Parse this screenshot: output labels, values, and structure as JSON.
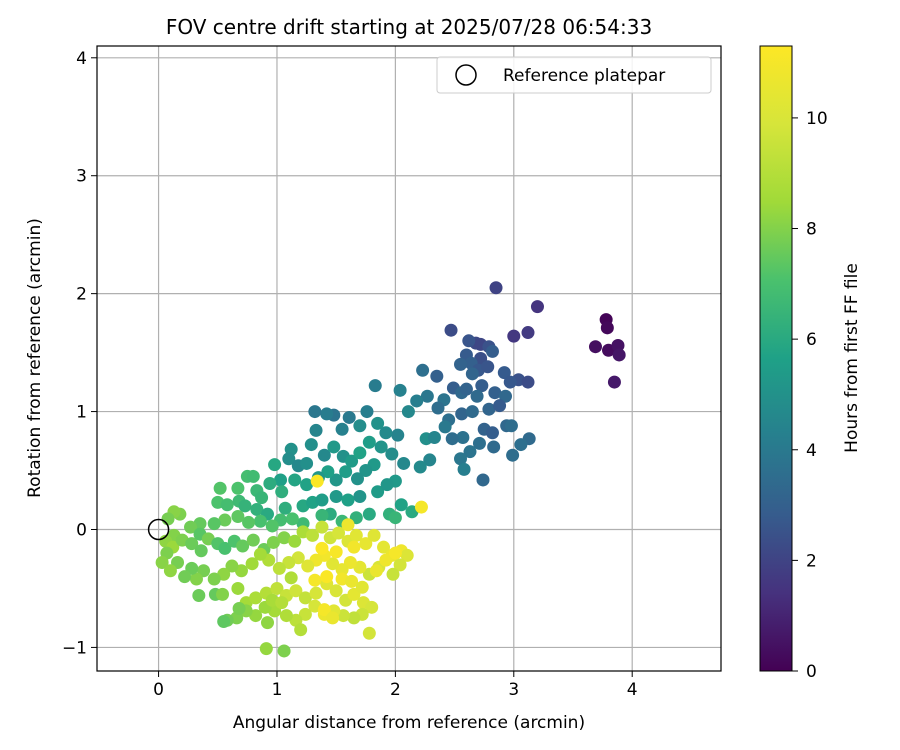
{
  "chart_data": {
    "type": "scatter",
    "title": "FOV centre drift starting at 2025/07/28 06:54:33",
    "xlabel": "Angular distance from reference (arcmin)",
    "ylabel": "Rotation from reference (arcmin)",
    "xlim": [
      -0.52,
      4.75
    ],
    "ylim": [
      -1.2,
      4.1
    ],
    "xticks": [
      0,
      1,
      2,
      3,
      4
    ],
    "yticks": [
      -1,
      0,
      1,
      2,
      3,
      4
    ],
    "grid": true,
    "legend": {
      "position": "top-right",
      "entries": [
        "Reference platepar"
      ]
    },
    "reference_point": {
      "name": "Reference platepar",
      "x": 0,
      "y": 0
    },
    "colorbar": {
      "label": "Hours from first FF file",
      "colormap": "viridis",
      "range": [
        0,
        11.3
      ],
      "ticks": [
        0,
        2,
        4,
        6,
        8,
        10
      ]
    },
    "points": [
      [
        3.78,
        1.78,
        0.1
      ],
      [
        3.79,
        1.71,
        0.2
      ],
      [
        3.69,
        1.55,
        0.4
      ],
      [
        3.8,
        1.52,
        0.3
      ],
      [
        3.88,
        1.56,
        0.5
      ],
      [
        3.89,
        1.48,
        0.6
      ],
      [
        3.85,
        1.25,
        0.7
      ],
      [
        2.85,
        2.05,
        2.0
      ],
      [
        3.2,
        1.89,
        1.5
      ],
      [
        2.47,
        1.69,
        2.3
      ],
      [
        2.68,
        1.58,
        2.2
      ],
      [
        2.72,
        1.57,
        2.1
      ],
      [
        2.79,
        1.55,
        2.5
      ],
      [
        3.12,
        1.67,
        1.7
      ],
      [
        3.0,
        1.64,
        1.6
      ],
      [
        2.62,
        1.6,
        2.6
      ],
      [
        2.6,
        1.48,
        2.8
      ],
      [
        2.72,
        1.45,
        2.4
      ],
      [
        2.82,
        1.51,
        2.9
      ],
      [
        2.64,
        1.41,
        3.0
      ],
      [
        2.55,
        1.4,
        3.1
      ],
      [
        2.7,
        1.35,
        2.7
      ],
      [
        2.78,
        1.38,
        2.6
      ],
      [
        2.65,
        1.32,
        3.2
      ],
      [
        2.92,
        1.33,
        2.8
      ],
      [
        3.04,
        1.27,
        2.5
      ],
      [
        3.12,
        1.25,
        2.3
      ],
      [
        2.97,
        1.25,
        2.7
      ],
      [
        2.35,
        1.3,
        3.0
      ],
      [
        2.23,
        1.35,
        3.6
      ],
      [
        2.49,
        1.2,
        2.9
      ],
      [
        2.56,
        1.16,
        3.3
      ],
      [
        2.6,
        1.19,
        3.1
      ],
      [
        2.73,
        1.22,
        2.9
      ],
      [
        2.69,
        1.13,
        3.4
      ],
      [
        2.84,
        1.16,
        3.0
      ],
      [
        2.93,
        1.13,
        3.3
      ],
      [
        2.41,
        1.1,
        3.8
      ],
      [
        2.27,
        1.13,
        3.9
      ],
      [
        2.36,
        1.03,
        3.5
      ],
      [
        2.18,
        1.09,
        4.2
      ],
      [
        1.83,
        1.22,
        4.1
      ],
      [
        2.04,
        1.18,
        4.3
      ],
      [
        2.11,
        1.0,
        4.6
      ],
      [
        2.45,
        0.93,
        3.6
      ],
      [
        2.56,
        0.98,
        3.2
      ],
      [
        2.65,
        1.0,
        3.4
      ],
      [
        2.79,
        1.02,
        3.2
      ],
      [
        2.88,
        1.05,
        2.8
      ],
      [
        2.75,
        0.85,
        3.1
      ],
      [
        2.82,
        0.82,
        2.9
      ],
      [
        2.94,
        0.88,
        3.3
      ],
      [
        2.98,
        0.88,
        3.5
      ],
      [
        3.13,
        0.77,
        3.4
      ],
      [
        3.06,
        0.72,
        3.6
      ],
      [
        2.57,
        0.78,
        3.7
      ],
      [
        2.48,
        0.77,
        3.5
      ],
      [
        2.42,
        0.87,
        4.0
      ],
      [
        2.26,
        0.77,
        4.9
      ],
      [
        2.33,
        0.78,
        4.5
      ],
      [
        2.71,
        0.73,
        3.6
      ],
      [
        2.83,
        0.7,
        3.4
      ],
      [
        2.99,
        0.63,
        3.5
      ],
      [
        2.63,
        0.66,
        3.8
      ],
      [
        2.55,
        0.6,
        3.9
      ],
      [
        2.74,
        0.42,
        3.3
      ],
      [
        2.58,
        0.51,
        4.2
      ],
      [
        2.29,
        0.59,
        4.5
      ],
      [
        2.21,
        0.53,
        4.7
      ],
      [
        2.07,
        0.56,
        4.6
      ],
      [
        2.0,
        0.41,
        5.3
      ],
      [
        1.97,
        0.64,
        4.8
      ],
      [
        2.02,
        0.8,
        4.4
      ],
      [
        1.92,
        0.82,
        4.7
      ],
      [
        1.85,
        0.9,
        5.0
      ],
      [
        1.7,
        0.88,
        4.8
      ],
      [
        1.76,
        1.0,
        4.2
      ],
      [
        1.61,
        0.95,
        4.0
      ],
      [
        1.48,
        0.97,
        3.8
      ],
      [
        1.55,
        0.85,
        4.3
      ],
      [
        1.42,
        0.98,
        4.1
      ],
      [
        1.32,
        1.0,
        3.9
      ],
      [
        1.33,
        0.84,
        4.5
      ],
      [
        1.29,
        0.72,
        4.9
      ],
      [
        1.12,
        0.68,
        5.0
      ],
      [
        1.1,
        0.6,
        4.8
      ],
      [
        1.18,
        0.54,
        4.6
      ],
      [
        1.25,
        0.56,
        4.9
      ],
      [
        1.4,
        0.63,
        4.6
      ],
      [
        1.48,
        0.7,
        5.3
      ],
      [
        1.56,
        0.62,
        5.0
      ],
      [
        1.63,
        0.58,
        5.4
      ],
      [
        1.7,
        0.65,
        5.7
      ],
      [
        1.78,
        0.74,
        5.5
      ],
      [
        1.88,
        0.7,
        5.1
      ],
      [
        1.82,
        0.55,
        5.3
      ],
      [
        1.75,
        0.5,
        5.1
      ],
      [
        1.68,
        0.43,
        5.0
      ],
      [
        1.58,
        0.49,
        5.5
      ],
      [
        1.5,
        0.42,
        5.2
      ],
      [
        1.43,
        0.49,
        5.6
      ],
      [
        1.35,
        0.44,
        5.2
      ],
      [
        1.25,
        0.38,
        5.7
      ],
      [
        1.15,
        0.42,
        5.8
      ],
      [
        1.03,
        0.42,
        5.6
      ],
      [
        0.98,
        0.55,
        5.9
      ],
      [
        0.94,
        0.39,
        6.1
      ],
      [
        1.04,
        0.32,
        6.2
      ],
      [
        0.83,
        0.33,
        6.6
      ],
      [
        0.87,
        0.27,
        6.5
      ],
      [
        0.75,
        0.45,
        6.9
      ],
      [
        0.8,
        0.45,
        6.8
      ],
      [
        0.67,
        0.35,
        7.1
      ],
      [
        0.52,
        0.35,
        7.2
      ],
      [
        0.5,
        0.23,
        7.1
      ],
      [
        0.58,
        0.21,
        6.9
      ],
      [
        0.68,
        0.24,
        6.7
      ],
      [
        0.73,
        0.2,
        6.4
      ],
      [
        0.83,
        0.17,
        6.3
      ],
      [
        0.92,
        0.13,
        6.0
      ],
      [
        1.07,
        0.18,
        6.2
      ],
      [
        1.22,
        0.2,
        5.9
      ],
      [
        1.3,
        0.23,
        5.7
      ],
      [
        1.38,
        0.25,
        5.5
      ],
      [
        1.5,
        0.28,
        5.3
      ],
      [
        1.6,
        0.25,
        5.6
      ],
      [
        1.7,
        0.28,
        5.1
      ],
      [
        1.85,
        0.32,
        5.4
      ],
      [
        1.93,
        0.38,
        5.2
      ],
      [
        2.05,
        0.21,
        5.7
      ],
      [
        1.95,
        0.13,
        6.3
      ],
      [
        2.14,
        0.15,
        6.0
      ],
      [
        2.0,
        0.1,
        6.5
      ],
      [
        1.78,
        0.13,
        6.0
      ],
      [
        1.67,
        0.1,
        6.3
      ],
      [
        1.55,
        0.07,
        6.6
      ],
      [
        1.45,
        0.13,
        6.1
      ],
      [
        1.38,
        0.12,
        6.5
      ],
      [
        1.22,
        0.05,
        6.7
      ],
      [
        1.13,
        0.09,
        7.0
      ],
      [
        1.03,
        0.08,
        6.9
      ],
      [
        0.96,
        0.03,
        7.2
      ],
      [
        0.86,
        0.07,
        7.0
      ],
      [
        0.76,
        0.06,
        7.3
      ],
      [
        0.67,
        0.11,
        7.4
      ],
      [
        0.56,
        0.08,
        7.6
      ],
      [
        0.47,
        0.05,
        7.3
      ],
      [
        0.35,
        0.05,
        7.5
      ],
      [
        0.27,
        0.02,
        7.7
      ],
      [
        0.18,
        0.13,
        7.9
      ],
      [
        0.13,
        0.15,
        8.1
      ],
      [
        0.08,
        0.09,
        7.8
      ],
      [
        0.13,
        -0.05,
        8.0
      ],
      [
        0.06,
        -0.1,
        8.2
      ],
      [
        0.12,
        -0.15,
        8.4
      ],
      [
        0.2,
        -0.09,
        7.9
      ],
      [
        0.28,
        -0.12,
        7.6
      ],
      [
        0.35,
        -0.04,
        7.3
      ],
      [
        0.42,
        -0.08,
        7.8
      ],
      [
        0.5,
        -0.12,
        7.2
      ],
      [
        0.56,
        -0.16,
        7.0
      ],
      [
        0.64,
        -0.1,
        7.1
      ],
      [
        0.71,
        -0.14,
        7.5
      ],
      [
        0.8,
        -0.09,
        7.7
      ],
      [
        0.89,
        -0.17,
        7.6
      ],
      [
        0.97,
        -0.11,
        7.9
      ],
      [
        1.06,
        -0.07,
        8.0
      ],
      [
        1.15,
        -0.1,
        8.4
      ],
      [
        1.22,
        -0.02,
        8.8
      ],
      [
        1.3,
        -0.05,
        9.2
      ],
      [
        1.38,
        0.02,
        9.5
      ],
      [
        1.45,
        -0.07,
        9.7
      ],
      [
        1.52,
        -0.03,
        9.9
      ],
      [
        1.6,
        -0.1,
        10.1
      ],
      [
        1.67,
        -0.05,
        10.3
      ],
      [
        1.75,
        -0.12,
        10.5
      ],
      [
        1.82,
        -0.05,
        10.2
      ],
      [
        1.9,
        -0.15,
        10.4
      ],
      [
        1.97,
        -0.22,
        10.6
      ],
      [
        2.05,
        -0.18,
        10.8
      ],
      [
        2.1,
        -0.22,
        10.1
      ],
      [
        2.04,
        -0.3,
        9.8
      ],
      [
        1.98,
        -0.38,
        9.5
      ],
      [
        1.86,
        -0.32,
        10.0
      ],
      [
        1.78,
        -0.38,
        9.6
      ],
      [
        1.7,
        -0.32,
        10.4
      ],
      [
        1.62,
        -0.28,
        10.7
      ],
      [
        1.55,
        -0.34,
        10.5
      ],
      [
        1.47,
        -0.29,
        10.3
      ],
      [
        1.4,
        -0.22,
        10.9
      ],
      [
        1.33,
        -0.26,
        10.8
      ],
      [
        1.26,
        -0.31,
        10.2
      ],
      [
        1.18,
        -0.24,
        9.8
      ],
      [
        1.1,
        -0.28,
        9.5
      ],
      [
        1.02,
        -0.33,
        9.2
      ],
      [
        0.93,
        -0.26,
        8.9
      ],
      [
        0.86,
        -0.21,
        8.6
      ],
      [
        0.79,
        -0.29,
        8.5
      ],
      [
        0.7,
        -0.35,
        8.3
      ],
      [
        0.62,
        -0.31,
        8.1
      ],
      [
        0.55,
        -0.38,
        8.2
      ],
      [
        0.47,
        -0.42,
        7.9
      ],
      [
        0.38,
        -0.35,
        7.8
      ],
      [
        0.32,
        -0.42,
        8.0
      ],
      [
        0.28,
        -0.33,
        7.6
      ],
      [
        0.22,
        -0.4,
        7.7
      ],
      [
        0.16,
        -0.28,
        7.8
      ],
      [
        0.07,
        -0.2,
        7.9
      ],
      [
        0.03,
        -0.28,
        8.1
      ],
      [
        0.1,
        -0.35,
        8.2
      ],
      [
        0.48,
        -0.55,
        7.5
      ],
      [
        0.54,
        -0.55,
        8.0
      ],
      [
        0.67,
        -0.5,
        8.4
      ],
      [
        0.74,
        -0.62,
        8.6
      ],
      [
        0.82,
        -0.58,
        8.8
      ],
      [
        0.91,
        -0.54,
        9.0
      ],
      [
        1.0,
        -0.5,
        9.3
      ],
      [
        1.08,
        -0.56,
        9.5
      ],
      [
        1.16,
        -0.52,
        9.7
      ],
      [
        1.24,
        -0.58,
        9.4
      ],
      [
        1.33,
        -0.54,
        9.9
      ],
      [
        1.42,
        -0.46,
        10.2
      ],
      [
        1.5,
        -0.52,
        10.0
      ],
      [
        1.58,
        -0.6,
        9.8
      ],
      [
        1.65,
        -0.55,
        10.4
      ],
      [
        1.73,
        -0.62,
        10.1
      ],
      [
        1.8,
        -0.66,
        9.9
      ],
      [
        1.72,
        -0.72,
        9.6
      ],
      [
        1.65,
        -0.75,
        9.3
      ],
      [
        1.56,
        -0.73,
        9.6
      ],
      [
        1.48,
        -0.69,
        10.3
      ],
      [
        1.4,
        -0.72,
        10.7
      ],
      [
        1.32,
        -0.65,
        9.9
      ],
      [
        1.24,
        -0.72,
        9.5
      ],
      [
        1.16,
        -0.77,
        9.2
      ],
      [
        1.08,
        -0.73,
        8.9
      ],
      [
        0.98,
        -0.69,
        8.6
      ],
      [
        0.9,
        -0.66,
        8.4
      ],
      [
        0.82,
        -0.73,
        8.3
      ],
      [
        0.74,
        -0.69,
        8.1
      ],
      [
        0.66,
        -0.75,
        7.9
      ],
      [
        0.58,
        -0.77,
        7.7
      ],
      [
        0.34,
        -0.56,
        7.6
      ],
      [
        0.96,
        -0.6,
        8.7
      ],
      [
        1.04,
        -0.62,
        9.0
      ],
      [
        1.32,
        -0.43,
        11.0
      ],
      [
        1.42,
        -0.4,
        11.2
      ],
      [
        1.55,
        -0.42,
        10.9
      ],
      [
        1.63,
        -0.44,
        10.6
      ],
      [
        1.72,
        -0.49,
        10.3
      ],
      [
        1.84,
        -0.35,
        10.6
      ],
      [
        1.92,
        -0.26,
        10.8
      ],
      [
        2.0,
        -0.2,
        11.0
      ],
      [
        1.65,
        -0.15,
        10.9
      ],
      [
        1.5,
        -0.19,
        11.1
      ],
      [
        1.38,
        -0.16,
        11.2
      ],
      [
        1.4,
        -0.68,
        11.0
      ],
      [
        1.47,
        -0.75,
        10.6
      ],
      [
        1.78,
        -0.88,
        9.8
      ],
      [
        1.2,
        -0.85,
        9.0
      ],
      [
        0.91,
        -1.01,
        8.3
      ],
      [
        1.06,
        -1.03,
        7.9
      ],
      [
        0.92,
        -0.79,
        8.2
      ],
      [
        0.55,
        -0.78,
        7.4
      ],
      [
        0.68,
        -0.67,
        7.8
      ],
      [
        1.34,
        0.41,
        11.2
      ],
      [
        2.22,
        0.19,
        11.0
      ],
      [
        1.6,
        0.04,
        10.7
      ],
      [
        1.12,
        -0.41,
        8.9
      ],
      [
        0.36,
        -0.18,
        7.5
      ]
    ]
  }
}
